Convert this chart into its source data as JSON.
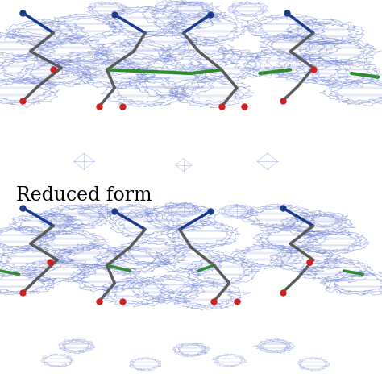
{
  "label_text": "Reduced form",
  "label_fontsize": 17,
  "label_color": "#000000",
  "bg_color": "#ffffff",
  "mesh_color": "#6b7fd4",
  "mesh_alpha": 0.55,
  "mesh_linewidth": 0.5,
  "bond_color_gray": "#5a5a5a",
  "bond_color_blue": "#1a3a8c",
  "bond_color_green": "#2e8b2e",
  "bond_color_red": "#cc2222",
  "fig_width": 4.74,
  "fig_height": 4.74,
  "dpi": 100
}
